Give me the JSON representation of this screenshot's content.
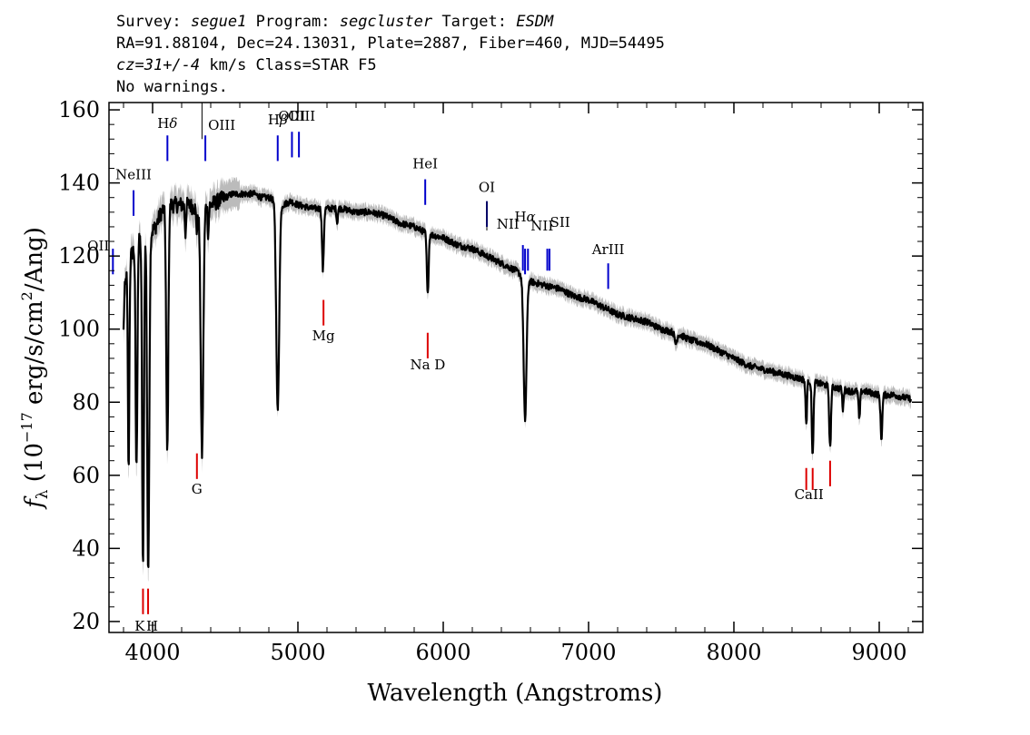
{
  "header": {
    "survey_label": "Survey:",
    "survey": "segue1",
    "program_label": "Program:",
    "program": "segcluster",
    "target_label": "Target:",
    "target": "ESDM",
    "line2": "RA=91.88104, Dec=24.13031, Plate=2887, Fiber=460, MJD=54495",
    "cz_label": "cz=",
    "cz_value": "31+/-4",
    "cz_rest": " km/s Class=STAR F5",
    "warnings": "No warnings."
  },
  "chart_data": {
    "type": "line",
    "title": "",
    "xlabel": "Wavelength (Angstroms)",
    "ylabel": "fλ (10^-17 erg/s/cm^2/Ang)",
    "ylabel_parts": {
      "f": "f",
      "lambda": "λ",
      "pre": " (10",
      "exp1": "−17",
      "mid": " erg/s/cm",
      "exp2": "2",
      "post": "/Ang)"
    },
    "xlim": [
      3700,
      9300
    ],
    "ylim": [
      17,
      162
    ],
    "xticks": [
      4000,
      5000,
      6000,
      7000,
      8000,
      9000
    ],
    "yticks": [
      20,
      40,
      60,
      80,
      100,
      120,
      140,
      160
    ],
    "grid": false,
    "colors": {
      "flux": "#000000",
      "error": "#bbbbbb",
      "emission": "#0000cc",
      "absorption": "#dd0000"
    },
    "continuum": [
      [
        3800,
        108
      ],
      [
        3830,
        118
      ],
      [
        3870,
        122
      ],
      [
        3900,
        124
      ],
      [
        3940,
        126
      ],
      [
        3980,
        126
      ],
      [
        4020,
        128
      ],
      [
        4060,
        132
      ],
      [
        4100,
        134
      ],
      [
        4150,
        134
      ],
      [
        4200,
        134
      ],
      [
        4250,
        134
      ],
      [
        4300,
        133
      ],
      [
        4350,
        134
      ],
      [
        4400,
        134
      ],
      [
        4450,
        135
      ],
      [
        4500,
        136
      ],
      [
        4550,
        137
      ],
      [
        4600,
        137
      ],
      [
        4650,
        137
      ],
      [
        4700,
        137
      ],
      [
        4750,
        136
      ],
      [
        4800,
        136
      ],
      [
        4850,
        135
      ],
      [
        4900,
        134
      ],
      [
        4950,
        135
      ],
      [
        5000,
        134
      ],
      [
        5100,
        133
      ],
      [
        5200,
        133
      ],
      [
        5300,
        133
      ],
      [
        5400,
        132
      ],
      [
        5500,
        132
      ],
      [
        5600,
        131
      ],
      [
        5700,
        129
      ],
      [
        5800,
        128
      ],
      [
        5900,
        126
      ],
      [
        6000,
        125
      ],
      [
        6100,
        123
      ],
      [
        6200,
        122
      ],
      [
        6300,
        120
      ],
      [
        6400,
        118
      ],
      [
        6500,
        116
      ],
      [
        6600,
        113
      ],
      [
        6700,
        112
      ],
      [
        6800,
        111
      ],
      [
        6900,
        109
      ],
      [
        7000,
        108
      ],
      [
        7100,
        106
      ],
      [
        7200,
        104
      ],
      [
        7300,
        103
      ],
      [
        7400,
        102
      ],
      [
        7500,
        100
      ],
      [
        7600,
        99
      ],
      [
        7700,
        97
      ],
      [
        7800,
        96
      ],
      [
        7900,
        94
      ],
      [
        8000,
        92
      ],
      [
        8100,
        90
      ],
      [
        8200,
        89
      ],
      [
        8300,
        88
      ],
      [
        8400,
        87
      ],
      [
        8500,
        86
      ],
      [
        8600,
        85
      ],
      [
        8700,
        84
      ],
      [
        8800,
        83
      ],
      [
        8900,
        83
      ],
      [
        9000,
        82
      ],
      [
        9100,
        82
      ],
      [
        9200,
        81
      ]
    ],
    "absorption_features": [
      {
        "center": 3798,
        "depth": 10,
        "width": 4
      },
      {
        "center": 3835,
        "depth": 58,
        "width": 5
      },
      {
        "center": 3889,
        "depth": 62,
        "width": 6
      },
      {
        "center": 3934,
        "depth": 92,
        "width": 6
      },
      {
        "center": 3970,
        "depth": 94,
        "width": 7
      },
      {
        "center": 4101,
        "depth": 68,
        "width": 7
      },
      {
        "center": 4226,
        "depth": 8,
        "width": 4
      },
      {
        "center": 4305,
        "depth": 6,
        "width": 5
      },
      {
        "center": 4340,
        "depth": 68,
        "width": 9
      },
      {
        "center": 4383,
        "depth": 8,
        "width": 4
      },
      {
        "center": 4861,
        "depth": 57,
        "width": 10
      },
      {
        "center": 5172,
        "depth": 17,
        "width": 6
      },
      {
        "center": 5270,
        "depth": 4,
        "width": 4
      },
      {
        "center": 5893,
        "depth": 17,
        "width": 6
      },
      {
        "center": 6563,
        "depth": 39,
        "width": 10
      },
      {
        "center": 7600,
        "depth": 3,
        "width": 8
      },
      {
        "center": 8498,
        "depth": 12,
        "width": 5
      },
      {
        "center": 8542,
        "depth": 20,
        "width": 6
      },
      {
        "center": 8662,
        "depth": 17,
        "width": 6
      },
      {
        "center": 8750,
        "depth": 6,
        "width": 4
      },
      {
        "center": 8863,
        "depth": 8,
        "width": 5
      },
      {
        "center": 9015,
        "depth": 12,
        "width": 6
      },
      {
        "center": 9230,
        "depth": 4,
        "width": 5
      }
    ],
    "emission_lines": [
      {
        "label": "OII",
        "x": 3727,
        "y0": 115,
        "y1": 122,
        "label_y": 121.5,
        "align": "end",
        "style": "sub"
      },
      {
        "label": "NeIII",
        "x": 3869,
        "y0": 131,
        "y1": 138,
        "label_y": 141,
        "align": "middle"
      },
      {
        "label": "Hδ",
        "x": 4102,
        "y0": 146,
        "y1": 153,
        "label_y": 155,
        "align": "middle",
        "italic_last": true
      },
      {
        "label": "OIII",
        "x": 4363,
        "y0": 146,
        "y1": 153,
        "label_y": 154.5,
        "align": "start"
      },
      {
        "label": "Hβ",
        "x": 4861,
        "y0": 146,
        "y1": 153,
        "label_y": 156,
        "align": "middle",
        "italic_last": true
      },
      {
        "label": "OIII",
        "x": 4959,
        "y0": 147,
        "y1": 154,
        "label_y": 157,
        "align": "middle"
      },
      {
        "label": "OIII",
        "x": 5007,
        "y0": 147,
        "y1": 154,
        "label_y": 157,
        "align": "end-offset"
      },
      {
        "label": "HeI",
        "x": 5876,
        "y0": 134,
        "y1": 141,
        "label_y": 144,
        "align": "middle"
      },
      {
        "label": "OI",
        "x": 6300,
        "y0": 128,
        "y1": 135,
        "label_y": 137.5,
        "align": "middle"
      },
      {
        "label": "NII",
        "x": 6548,
        "y0": 116,
        "y1": 123,
        "label_y": 127.5,
        "align": "end"
      },
      {
        "label": "Hα",
        "x": 6563,
        "y0": 115,
        "y1": 122,
        "label_y": 129.5,
        "align": "middle",
        "italic_last": true
      },
      {
        "label": "NII",
        "x": 6583,
        "y0": 116,
        "y1": 122,
        "label_y": 127,
        "align": "start"
      },
      {
        "label": "SII",
        "x": 6716,
        "y0": 116,
        "y1": 122,
        "label_y": 128,
        "align": "start"
      },
      {
        "label": "SII",
        "x": 6731,
        "y0": 116,
        "y1": 122,
        "label_y": 127,
        "align": "none"
      },
      {
        "label": "ArIII",
        "x": 7135,
        "y0": 111,
        "y1": 118,
        "label_y": 120.5,
        "align": "middle"
      }
    ],
    "absorption_lines": [
      {
        "label": "K",
        "x": 3934,
        "y0": 22,
        "y1": 29,
        "label_y": 17.5,
        "align": "end-near"
      },
      {
        "label": "H",
        "x": 3969,
        "y0": 22,
        "y1": 29,
        "label_y": 17.5,
        "align": "start-near"
      },
      {
        "label": "G",
        "x": 4305,
        "y0": 59,
        "y1": 66,
        "label_y": 55,
        "align": "middle"
      },
      {
        "label": "Mg",
        "x": 5176,
        "y0": 101,
        "y1": 108,
        "label_y": 97,
        "align": "middle"
      },
      {
        "label": "Na D",
        "x": 5893,
        "y0": 92,
        "y1": 99,
        "label_y": 89,
        "align": "middle"
      },
      {
        "label": "CaII",
        "x": 8498,
        "y0": 56,
        "y1": 62,
        "label_y": 53.5,
        "align": "none"
      },
      {
        "label": "CaII",
        "x": 8542,
        "y0": 56,
        "y1": 62,
        "label_y": 53.5,
        "align": "middle-pair"
      },
      {
        "label": "CaII",
        "x": 8662,
        "y0": 57,
        "y1": 64,
        "label_y": 53.5,
        "align": "none"
      }
    ]
  }
}
